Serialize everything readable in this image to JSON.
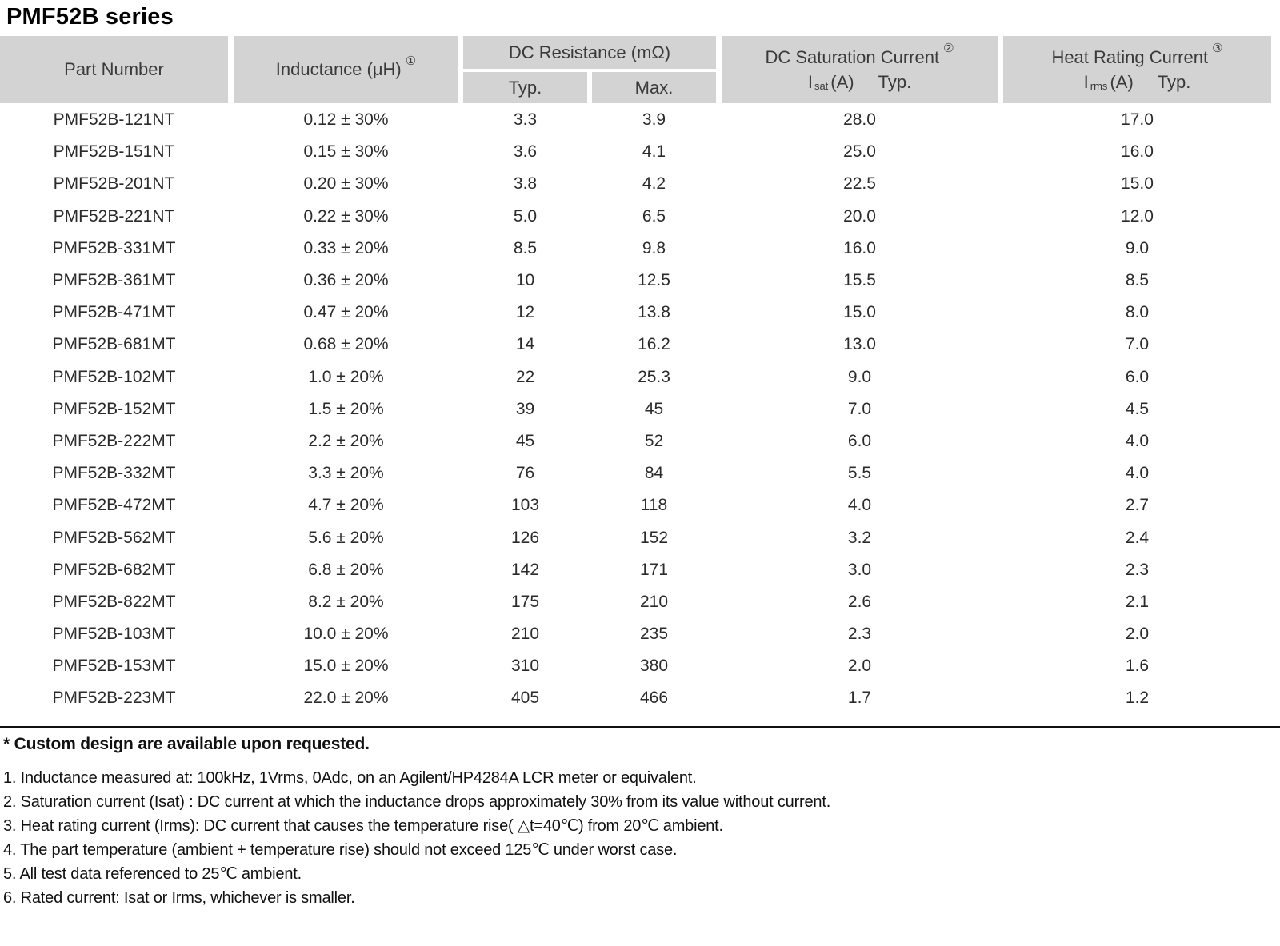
{
  "page_title": "PMF52B series",
  "table": {
    "headers": {
      "part_number": "Part Number",
      "inductance_label": "Inductance (μH)",
      "inductance_note": "①",
      "dc_resistance_group": "DC Resistance (mΩ)",
      "typ": "Typ.",
      "max": "Max.",
      "dc_saturation_title": "DC Saturation Current",
      "dc_saturation_note": "②",
      "isat_symbol": "I",
      "isat_subscript": "sat",
      "isat_unit": "(A)",
      "isat_typ": "Typ.",
      "heat_rating_title": "Heat Rating Current",
      "heat_rating_note": "③",
      "irms_symbol": "I",
      "irms_subscript": "rms",
      "irms_unit": "(A)",
      "irms_typ": "Typ."
    },
    "rows": [
      [
        "PMF52B-121NT",
        "0.12 ± 30%",
        "3.3",
        "3.9",
        "28.0",
        "17.0"
      ],
      [
        "PMF52B-151NT",
        "0.15 ± 30%",
        "3.6",
        "4.1",
        "25.0",
        "16.0"
      ],
      [
        "PMF52B-201NT",
        "0.20 ± 30%",
        "3.8",
        "4.2",
        "22.5",
        "15.0"
      ],
      [
        "PMF52B-221NT",
        "0.22 ± 30%",
        "5.0",
        "6.5",
        "20.0",
        "12.0"
      ],
      [
        "PMF52B-331MT",
        "0.33 ± 20%",
        "8.5",
        "9.8",
        "16.0",
        "9.0"
      ],
      [
        "PMF52B-361MT",
        "0.36 ± 20%",
        "10",
        "12.5",
        "15.5",
        "8.5"
      ],
      [
        "PMF52B-471MT",
        "0.47 ± 20%",
        "12",
        "13.8",
        "15.0",
        "8.0"
      ],
      [
        "PMF52B-681MT",
        "0.68 ± 20%",
        "14",
        "16.2",
        "13.0",
        "7.0"
      ],
      [
        "PMF52B-102MT",
        "1.0 ± 20%",
        "22",
        "25.3",
        "9.0",
        "6.0"
      ],
      [
        "PMF52B-152MT",
        "1.5 ± 20%",
        "39",
        "45",
        "7.0",
        "4.5"
      ],
      [
        "PMF52B-222MT",
        "2.2 ± 20%",
        "45",
        "52",
        "6.0",
        "4.0"
      ],
      [
        "PMF52B-332MT",
        "3.3 ± 20%",
        "76",
        "84",
        "5.5",
        "4.0"
      ],
      [
        "PMF52B-472MT",
        "4.7 ± 20%",
        "103",
        "118",
        "4.0",
        "2.7"
      ],
      [
        "PMF52B-562MT",
        "5.6 ± 20%",
        "126",
        "152",
        "3.2",
        "2.4"
      ],
      [
        "PMF52B-682MT",
        "6.8 ± 20%",
        "142",
        "171",
        "3.0",
        "2.3"
      ],
      [
        "PMF52B-822MT",
        "8.2 ± 20%",
        "175",
        "210",
        "2.6",
        "2.1"
      ],
      [
        "PMF52B-103MT",
        "10.0 ± 20%",
        "210",
        "235",
        "2.3",
        "2.0"
      ],
      [
        "PMF52B-153MT",
        "15.0 ± 20%",
        "310",
        "380",
        "2.0",
        "1.6"
      ],
      [
        "PMF52B-223MT",
        "22.0 ± 20%",
        "405",
        "466",
        "1.7",
        "1.2"
      ]
    ]
  },
  "footnotes": {
    "custom_note": "* Custom design are available upon requested.",
    "numbered": [
      "1. Inductance measured at: 100kHz, 1Vrms, 0Adc, on an Agilent/HP4284A LCR meter or equivalent.",
      "2. Saturation current (Isat) : DC current at which the inductance drops approximately 30% from its value without current.",
      "3. Heat rating current (Irms): DC current that causes the temperature rise( △t=40℃) from 20℃ ambient.",
      "4. The part temperature (ambient + temperature rise) should not exceed 125℃ under worst case.",
      "5. All test data referenced to 25℃ ambient.",
      "6. Rated current: Isat or Irms, whichever is smaller."
    ]
  }
}
